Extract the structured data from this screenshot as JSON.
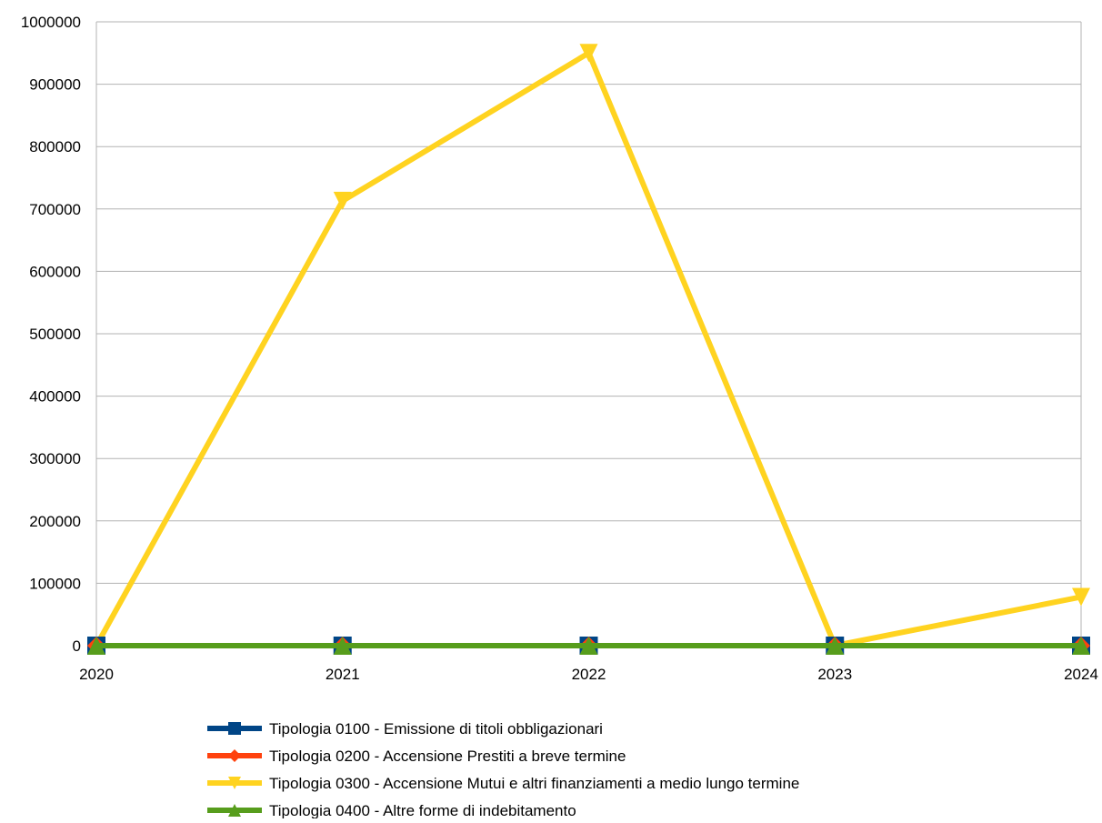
{
  "chart_data": {
    "type": "line",
    "categories": [
      "2020",
      "2021",
      "2022",
      "2023",
      "2024"
    ],
    "ylim": [
      0,
      1000000
    ],
    "y_ticks": [
      0,
      100000,
      200000,
      300000,
      400000,
      500000,
      600000,
      700000,
      800000,
      900000,
      1000000
    ],
    "grid": true,
    "legend_position": "bottom",
    "series": [
      {
        "name": "Tipologia 0100 - Emissione di titoli obbligazionari",
        "values": [
          0,
          0,
          0,
          0,
          0
        ],
        "color": "#004586",
        "marker": "square"
      },
      {
        "name": "Tipologia 0200 - Accensione Prestiti a breve termine",
        "values": [
          0,
          0,
          0,
          0,
          0
        ],
        "color": "#ff420e",
        "marker": "diamond"
      },
      {
        "name": "Tipologia 0300 - Accensione Mutui e altri finanziamenti a medio lungo termine",
        "values": [
          0,
          713000,
          950000,
          0,
          78000
        ],
        "color": "#ffd320",
        "marker": "triangle-down"
      },
      {
        "name": "Tipologia 0400 - Altre forme di indebitamento",
        "values": [
          0,
          0,
          0,
          0,
          0
        ],
        "color": "#579d1c",
        "marker": "triangle-up"
      }
    ]
  }
}
